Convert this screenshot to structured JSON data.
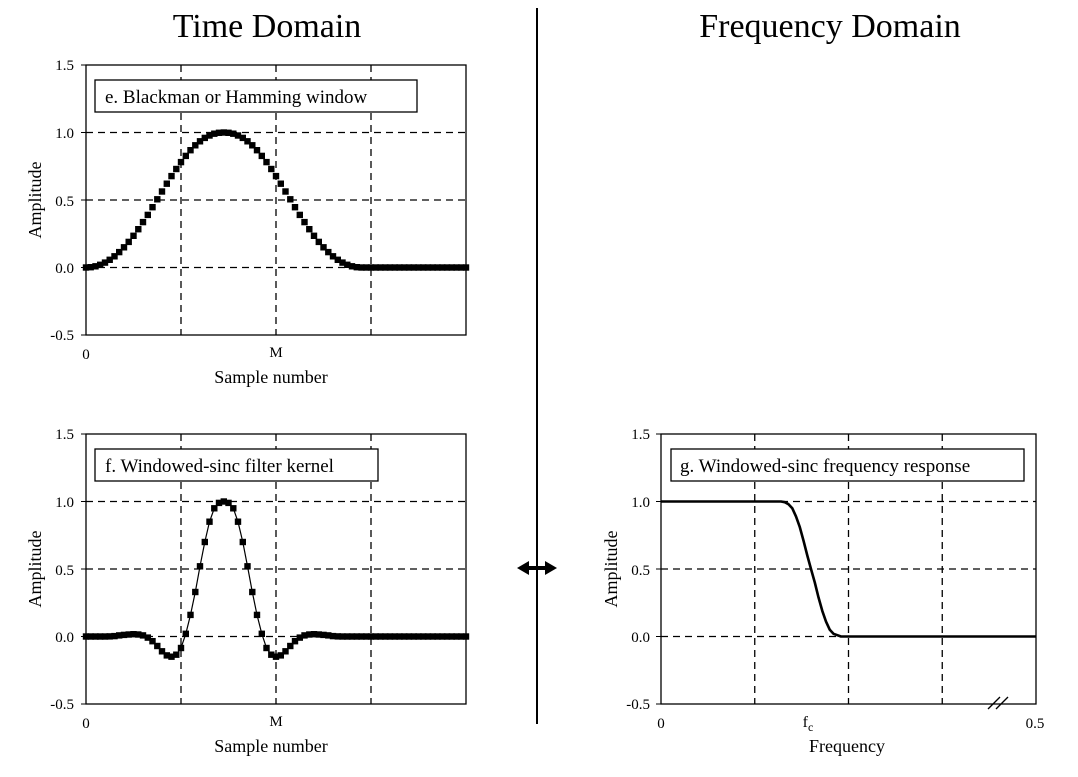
{
  "headings": {
    "time_domain": "Time Domain",
    "frequency_domain": "Frequency Domain"
  },
  "chart_data": [
    {
      "id": "e",
      "type": "scatter",
      "annotation": "e. Blackman or Hamming window",
      "xlabel": "Sample number",
      "ylabel": "Amplitude",
      "ylim": [
        -0.5,
        1.5
      ],
      "yticks": [
        "1.5",
        "1.0",
        "0.5",
        "0.0",
        "-0.5"
      ],
      "xticks": [
        "0",
        "M"
      ],
      "xlim": [
        0,
        80
      ],
      "grid": true,
      "x_start": 0,
      "values": [
        0.0,
        0.002,
        0.009,
        0.02,
        0.036,
        0.057,
        0.083,
        0.114,
        0.15,
        0.19,
        0.235,
        0.284,
        0.336,
        0.39,
        0.447,
        0.505,
        0.563,
        0.621,
        0.677,
        0.73,
        0.781,
        0.827,
        0.869,
        0.905,
        0.935,
        0.96,
        0.978,
        0.991,
        0.998,
        1.0,
        0.998,
        0.991,
        0.978,
        0.96,
        0.935,
        0.905,
        0.869,
        0.827,
        0.781,
        0.73,
        0.677,
        0.621,
        0.563,
        0.505,
        0.447,
        0.39,
        0.336,
        0.284,
        0.235,
        0.19,
        0.15,
        0.114,
        0.083,
        0.057,
        0.036,
        0.02,
        0.009,
        0.002,
        0.0,
        0.0,
        0.0,
        0.0,
        0.0,
        0.0,
        0.0,
        0.0,
        0.0,
        0.0,
        0.0,
        0.0,
        0.0,
        0.0,
        0.0,
        0.0,
        0.0,
        0.0,
        0.0,
        0.0,
        0.0,
        0.0,
        0.0
      ]
    },
    {
      "id": "f",
      "type": "line",
      "annotation": "f. Windowed-sinc filter kernel",
      "xlabel": "Sample number",
      "ylabel": "Amplitude",
      "ylim": [
        -0.5,
        1.5
      ],
      "yticks": [
        "1.5",
        "1.0",
        "0.5",
        "0.0",
        "-0.5"
      ],
      "xticks": [
        "0",
        "M"
      ],
      "xlim": [
        0,
        80
      ],
      "grid": true,
      "x_start": 0,
      "values": [
        0.0,
        0.0,
        0.0,
        0.0,
        0.0,
        0.001,
        0.003,
        0.008,
        0.012,
        0.015,
        0.017,
        0.015,
        0.008,
        -0.008,
        -0.035,
        -0.07,
        -0.11,
        -0.14,
        -0.15,
        -0.135,
        -0.085,
        0.02,
        0.16,
        0.33,
        0.52,
        0.7,
        0.85,
        0.95,
        0.99,
        1.0,
        0.99,
        0.95,
        0.85,
        0.7,
        0.52,
        0.33,
        0.16,
        0.02,
        -0.085,
        -0.135,
        -0.15,
        -0.14,
        -0.11,
        -0.07,
        -0.035,
        -0.008,
        0.008,
        0.015,
        0.017,
        0.015,
        0.012,
        0.008,
        0.003,
        0.001,
        0.0,
        0.0,
        0.0,
        0.0,
        0.0,
        0.0,
        0.0,
        0.0,
        0.0,
        0.0,
        0.0,
        0.0,
        0.0,
        0.0,
        0.0,
        0.0,
        0.0,
        0.0,
        0.0,
        0.0,
        0.0,
        0.0,
        0.0,
        0.0,
        0.0,
        0.0,
        0.0
      ]
    },
    {
      "id": "g",
      "type": "line",
      "annotation": "g. Windowed-sinc frequency response",
      "xlabel": "Frequency",
      "ylabel": "Amplitude",
      "ylim": [
        -0.5,
        1.5
      ],
      "yticks": [
        "1.5",
        "1.0",
        "0.5",
        "0.0",
        "-0.5"
      ],
      "xlim": [
        0,
        0.5
      ],
      "xticks": [
        "0",
        "fc",
        "0.5"
      ],
      "fc": 0.2,
      "grid": true,
      "x": [
        0.0,
        0.08,
        0.16,
        0.165,
        0.17,
        0.175,
        0.18,
        0.185,
        0.19,
        0.195,
        0.2,
        0.205,
        0.21,
        0.215,
        0.22,
        0.225,
        0.23,
        0.24,
        0.3,
        0.4,
        0.5
      ],
      "y": [
        1.0,
        1.0,
        1.0,
        0.995,
        0.98,
        0.95,
        0.89,
        0.81,
        0.71,
        0.6,
        0.5,
        0.4,
        0.29,
        0.19,
        0.11,
        0.05,
        0.02,
        0.0,
        0.0,
        0.0,
        0.0
      ]
    }
  ]
}
